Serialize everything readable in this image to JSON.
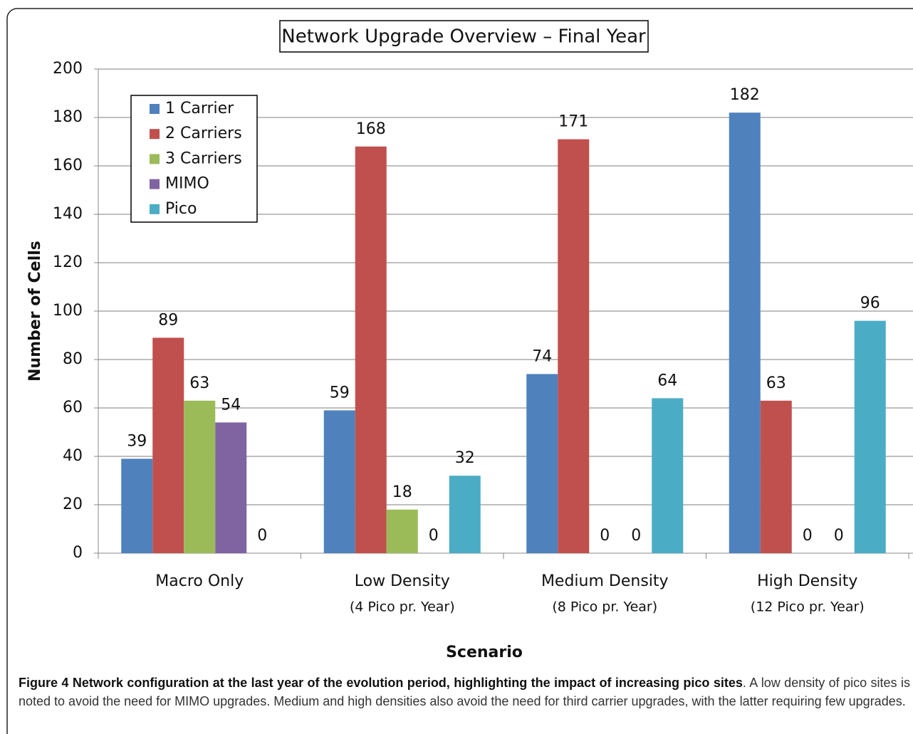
{
  "chart_data": {
    "type": "bar",
    "title": "Network Upgrade Overview – Final Year",
    "categories": [
      [
        "Macro Only"
      ],
      [
        "Low Density",
        "(4 Pico pr. Year)"
      ],
      [
        "Medium Density",
        "(8 Pico pr. Year)"
      ],
      [
        "High Density",
        "(12 Pico pr. Year)"
      ]
    ],
    "series": [
      {
        "name": "1 Carrier",
        "color": "#4f81bd",
        "values": [
          39,
          59,
          74,
          182
        ]
      },
      {
        "name": "2 Carriers",
        "color": "#c0504d",
        "values": [
          89,
          168,
          171,
          63
        ]
      },
      {
        "name": "3 Carriers",
        "color": "#9bbb59",
        "values": [
          63,
          18,
          0,
          0
        ]
      },
      {
        "name": "MIMO",
        "color": "#8064a2",
        "values": [
          54,
          0,
          0,
          0
        ]
      },
      {
        "name": "Pico",
        "color": "#4bacc6",
        "values": [
          0,
          32,
          64,
          96
        ]
      }
    ],
    "ylim": [
      0,
      200
    ],
    "yticks": [
      0,
      20,
      40,
      60,
      80,
      100,
      120,
      140,
      160,
      180,
      200
    ],
    "grid": true,
    "ylabel": "Number of Cells",
    "xlabel": "Scenario",
    "legend": "upper left"
  },
  "caption": {
    "bold": "Figure 4 Network configuration at the last year of the evolution period, highlighting the impact of increasing pico sites",
    "text": ". A low density of pico sites is noted to avoid the need for MIMO upgrades. Medium and high densities also avoid the need for third carrier upgrades, with the latter requiring few upgrades."
  }
}
